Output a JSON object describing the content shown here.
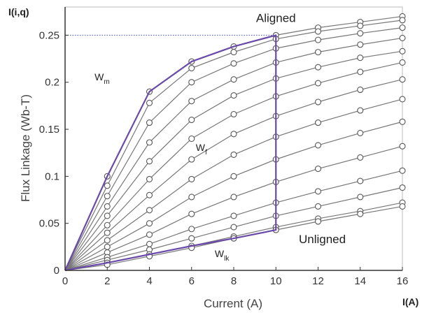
{
  "chart_data": {
    "type": "line",
    "xlabel": "Current (A)",
    "ylabel": "Flux Linkage (Wb-T)",
    "x_corner_label": "I(A)",
    "y_corner_label": "I(i,q)",
    "xlim": [
      0,
      16
    ],
    "ylim": [
      0,
      0.28
    ],
    "x_ticks": [
      "0",
      "2",
      "4",
      "6",
      "8",
      "10",
      "12",
      "14",
      "16"
    ],
    "y_ticks": [
      "0",
      "0.05",
      "0.1",
      "0.15",
      "0.2",
      "0.25"
    ],
    "grid": false,
    "x": [
      0,
      2,
      4,
      6,
      8,
      10,
      12,
      14,
      16
    ],
    "series": [
      {
        "values": [
          0,
          0.1,
          0.19,
          0.222,
          0.238,
          0.25,
          0.258,
          0.264,
          0.27
        ]
      },
      {
        "values": [
          0,
          0.09,
          0.178,
          0.215,
          0.232,
          0.246,
          0.254,
          0.26,
          0.266
        ]
      },
      {
        "values": [
          0,
          0.079,
          0.157,
          0.2,
          0.22,
          0.236,
          0.245,
          0.252,
          0.258
        ]
      },
      {
        "values": [
          0,
          0.068,
          0.136,
          0.18,
          0.203,
          0.221,
          0.232,
          0.24,
          0.247
        ]
      },
      {
        "values": [
          0,
          0.058,
          0.116,
          0.16,
          0.186,
          0.204,
          0.216,
          0.226,
          0.233
        ]
      },
      {
        "values": [
          0,
          0.048,
          0.097,
          0.14,
          0.166,
          0.185,
          0.199,
          0.211,
          0.221
        ]
      },
      {
        "values": [
          0,
          0.04,
          0.08,
          0.118,
          0.145,
          0.164,
          0.179,
          0.192,
          0.203
        ]
      },
      {
        "values": [
          0,
          0.032,
          0.064,
          0.097,
          0.123,
          0.142,
          0.157,
          0.17,
          0.182
        ]
      },
      {
        "values": [
          0,
          0.025,
          0.05,
          0.078,
          0.1,
          0.118,
          0.133,
          0.146,
          0.158
        ]
      },
      {
        "values": [
          0,
          0.019,
          0.038,
          0.06,
          0.078,
          0.094,
          0.108,
          0.12,
          0.132
        ]
      },
      {
        "values": [
          0,
          0.014,
          0.028,
          0.044,
          0.058,
          0.072,
          0.084,
          0.095,
          0.106
        ]
      },
      {
        "values": [
          0,
          0.011,
          0.022,
          0.034,
          0.046,
          0.058,
          0.068,
          0.078,
          0.088
        ]
      },
      {
        "values": [
          0,
          0.008,
          0.017,
          0.026,
          0.036,
          0.046,
          0.055,
          0.063,
          0.072
        ]
      },
      {
        "values": [
          0,
          0.006,
          0.015,
          0.024,
          0.034,
          0.043,
          0.052,
          0.06,
          0.068
        ]
      }
    ],
    "highlight_path": {
      "color": "#6a4aa8",
      "points": [
        [
          0,
          0
        ],
        [
          2,
          0.1
        ],
        [
          4,
          0.19
        ],
        [
          6,
          0.222
        ],
        [
          8,
          0.238
        ],
        [
          10,
          0.25
        ],
        [
          10,
          0.043
        ],
        [
          8,
          0.034
        ],
        [
          6,
          0.026
        ],
        [
          4,
          0.017
        ],
        [
          2,
          0.008
        ],
        [
          0,
          0
        ]
      ]
    },
    "reference_line": {
      "y": 0.25,
      "x_from": 0,
      "x_to": 10,
      "style": "dotted",
      "color": "#3b4fc0"
    },
    "annotations": [
      {
        "text": "Aligned",
        "x": 10.0,
        "y": 0.264
      },
      {
        "text": "Unligned",
        "x": 12.2,
        "y": 0.029
      },
      {
        "text": "W",
        "sub": "m",
        "x": 1.4,
        "y": 0.202
      },
      {
        "text": "W",
        "sub": "f",
        "x": 6.2,
        "y": 0.127
      },
      {
        "text": "W",
        "sub": "lk",
        "x": 7.1,
        "y": 0.014
      }
    ]
  }
}
